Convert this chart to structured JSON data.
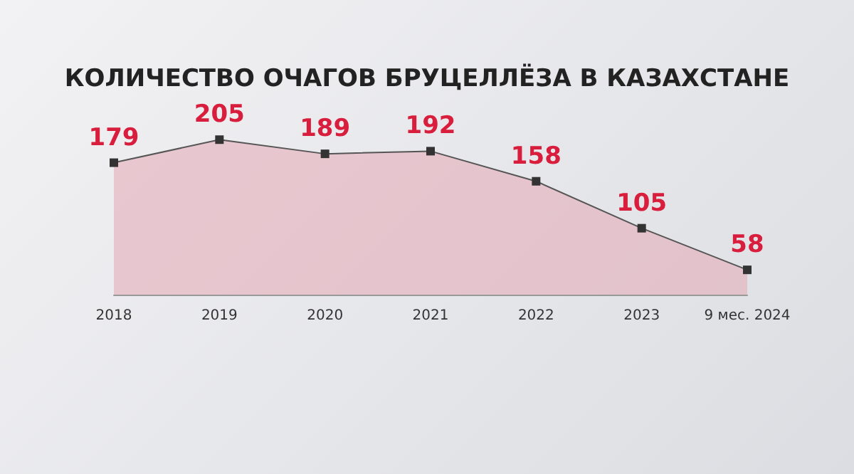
{
  "chart_data": {
    "type": "area",
    "title": "КОЛИЧЕСТВО ОЧАГОВ БРУЦЕЛЛЁЗА В КАЗАХСТАНЕ",
    "categories": [
      "2018",
      "2019",
      "2020",
      "2021",
      "2022",
      "2023",
      "9 мес. 2024"
    ],
    "series": [
      {
        "color": "#e3a7b4",
        "values": [
          179,
          205,
          189,
          192,
          158,
          105,
          58
        ]
      }
    ],
    "data_labels": true,
    "marker": "square"
  }
}
